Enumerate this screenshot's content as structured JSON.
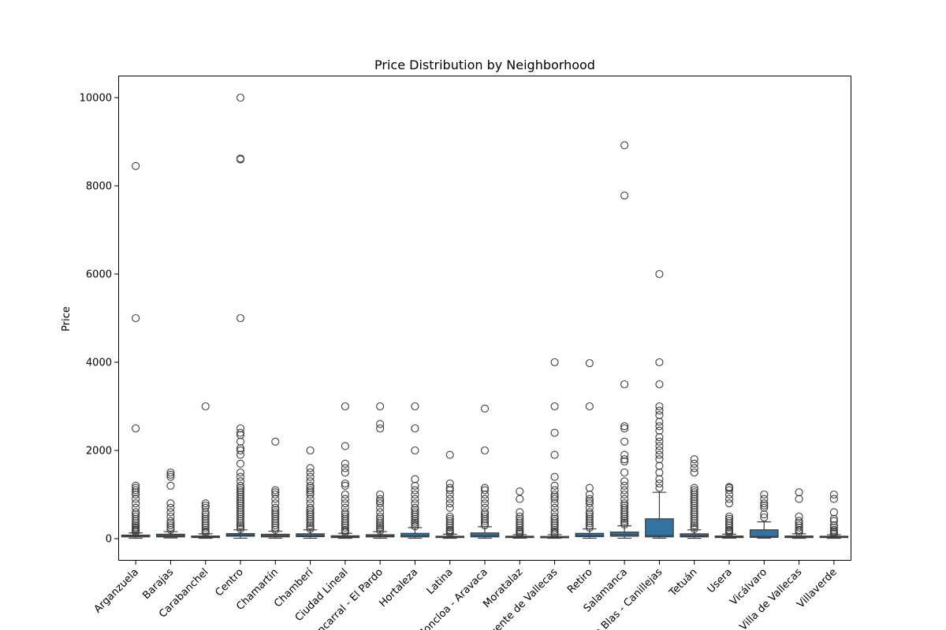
{
  "chart_data": {
    "type": "boxplot",
    "title": "Price Distribution by Neighborhood",
    "xlabel": "",
    "ylabel": "Price",
    "ylim": [
      -500,
      10500
    ],
    "yticks": [
      0,
      2000,
      4000,
      6000,
      8000,
      10000
    ],
    "grid": false,
    "box_color": "#3274a1",
    "categories": [
      "Arganzuela",
      "Barajas",
      "Carabanchel",
      "Centro",
      "Chamartín",
      "Chamberí",
      "Ciudad Lineal",
      "Fuencarral - El Pardo",
      "Hortaleza",
      "Latina",
      "Moncloa - Aravaca",
      "Moratalaz",
      "Puente de Vallecas",
      "Retiro",
      "Salamanca",
      "San Blas - Canillejas",
      "Tetuán",
      "Usera",
      "Vicálvaro",
      "Villa de Vallecas",
      "Villaverde"
    ],
    "boxes": [
      {
        "q1": 40,
        "median": 60,
        "q3": 80,
        "whisker_low": 10,
        "whisker_high": 130,
        "outliers": [
          150,
          180,
          200,
          230,
          260,
          300,
          350,
          400,
          450,
          500,
          550,
          600,
          700,
          800,
          900,
          1000,
          1050,
          1100,
          1150,
          1200,
          2500,
          5000,
          8450
        ]
      },
      {
        "q1": 40,
        "median": 65,
        "q3": 100,
        "whisker_low": 15,
        "whisker_high": 160,
        "outliers": [
          200,
          250,
          300,
          350,
          400,
          500,
          600,
          700,
          800,
          1200,
          1400,
          1450,
          1500
        ]
      },
      {
        "q1": 25,
        "median": 40,
        "q3": 60,
        "whisker_low": 8,
        "whisker_high": 110,
        "outliers": [
          130,
          160,
          200,
          250,
          300,
          350,
          400,
          450,
          500,
          550,
          600,
          700,
          750,
          800,
          3000
        ]
      },
      {
        "q1": 55,
        "median": 80,
        "q3": 115,
        "whisker_low": 10,
        "whisker_high": 200,
        "outliers": [
          220,
          260,
          300,
          350,
          400,
          450,
          500,
          550,
          600,
          650,
          700,
          750,
          800,
          850,
          900,
          950,
          1000,
          1050,
          1100,
          1150,
          1200,
          1300,
          1400,
          1500,
          1700,
          1900,
          2000,
          2050,
          2200,
          2350,
          2400,
          2500,
          5000,
          8600,
          8620,
          10000
        ]
      },
      {
        "q1": 40,
        "median": 65,
        "q3": 100,
        "whisker_low": 10,
        "whisker_high": 170,
        "outliers": [
          200,
          250,
          300,
          350,
          400,
          450,
          500,
          550,
          600,
          650,
          700,
          800,
          900,
          1000,
          1050,
          1100,
          2200
        ]
      },
      {
        "q1": 45,
        "median": 70,
        "q3": 110,
        "whisker_low": 10,
        "whisker_high": 200,
        "outliers": [
          220,
          260,
          300,
          350,
          400,
          450,
          500,
          550,
          600,
          650,
          700,
          800,
          900,
          1000,
          1050,
          1100,
          1150,
          1200,
          1300,
          1400,
          1500,
          1600,
          2000
        ]
      },
      {
        "q1": 25,
        "median": 40,
        "q3": 65,
        "whisker_low": 8,
        "whisker_high": 120,
        "outliers": [
          140,
          170,
          200,
          250,
          300,
          350,
          400,
          450,
          500,
          550,
          600,
          700,
          800,
          900,
          1000,
          1200,
          1250,
          1500,
          1600,
          1700,
          2100,
          3000
        ]
      },
      {
        "q1": 40,
        "median": 60,
        "q3": 90,
        "whisker_low": 10,
        "whisker_high": 160,
        "outliers": [
          180,
          220,
          260,
          300,
          350,
          400,
          450,
          500,
          600,
          700,
          800,
          850,
          900,
          1000,
          2500,
          2600,
          3000
        ]
      },
      {
        "q1": 40,
        "median": 70,
        "q3": 120,
        "whisker_low": 10,
        "whisker_high": 250,
        "outliers": [
          280,
          320,
          360,
          400,
          450,
          500,
          550,
          600,
          650,
          700,
          800,
          900,
          1000,
          1100,
          1200,
          1350,
          2000,
          2500,
          3000
        ]
      },
      {
        "q1": 25,
        "median": 35,
        "q3": 55,
        "whisker_low": 8,
        "whisker_high": 100,
        "outliers": [
          120,
          150,
          180,
          200,
          250,
          300,
          350,
          400,
          450,
          500,
          700,
          800,
          900,
          1000,
          1100,
          1150,
          1250,
          1900
        ]
      },
      {
        "q1": 40,
        "median": 70,
        "q3": 130,
        "whisker_low": 10,
        "whisker_high": 270,
        "outliers": [
          300,
          350,
          400,
          450,
          500,
          550,
          600,
          700,
          800,
          900,
          1000,
          1100,
          1150,
          2000,
          2950
        ]
      },
      {
        "q1": 25,
        "median": 35,
        "q3": 55,
        "whisker_low": 10,
        "whisker_high": 90,
        "outliers": [
          110,
          140,
          170,
          200,
          250,
          300,
          350,
          400,
          450,
          500,
          600,
          900,
          1070
        ]
      },
      {
        "q1": 20,
        "median": 30,
        "q3": 50,
        "whisker_low": 8,
        "whisker_high": 90,
        "outliers": [
          100,
          130,
          160,
          200,
          250,
          300,
          350,
          400,
          450,
          500,
          600,
          700,
          800,
          900,
          950,
          1000,
          1100,
          1200,
          1400,
          1900,
          2400,
          3000,
          4000
        ]
      },
      {
        "q1": 45,
        "median": 75,
        "q3": 120,
        "whisker_low": 10,
        "whisker_high": 220,
        "outliers": [
          250,
          300,
          350,
          400,
          450,
          500,
          550,
          600,
          700,
          800,
          850,
          900,
          1000,
          1150,
          3000,
          3980
        ]
      },
      {
        "q1": 55,
        "median": 90,
        "q3": 150,
        "whisker_low": 10,
        "whisker_high": 290,
        "outliers": [
          320,
          360,
          400,
          450,
          500,
          550,
          600,
          650,
          700,
          750,
          800,
          900,
          1000,
          1100,
          1200,
          1300,
          1500,
          1750,
          1800,
          1900,
          2200,
          2500,
          2550,
          3500,
          7780,
          8920
        ]
      },
      {
        "q1": 40,
        "median": 70,
        "q3": 450,
        "whisker_low": 10,
        "whisker_high": 1050,
        "outliers": [
          1150,
          1250,
          1350,
          1500,
          1650,
          1800,
          1900,
          2000,
          2100,
          2200,
          2300,
          2450,
          2550,
          2650,
          2800,
          2900,
          3000,
          3500,
          4000,
          6000
        ]
      },
      {
        "q1": 40,
        "median": 65,
        "q3": 110,
        "whisker_low": 8,
        "whisker_high": 200,
        "outliers": [
          220,
          260,
          300,
          350,
          400,
          450,
          500,
          550,
          600,
          650,
          700,
          750,
          800,
          850,
          900,
          950,
          1000,
          1050,
          1100,
          1150,
          1500,
          1600,
          1700,
          1800
        ]
      },
      {
        "q1": 25,
        "median": 40,
        "q3": 60,
        "whisker_low": 10,
        "whisker_high": 100,
        "outliers": [
          120,
          150,
          180,
          200,
          250,
          300,
          350,
          400,
          450,
          500,
          800,
          900,
          1000,
          1100,
          1150,
          1170
        ]
      },
      {
        "q1": 30,
        "median": 50,
        "q3": 200,
        "whisker_low": 10,
        "whisker_high": 380,
        "outliers": [
          480,
          550,
          700,
          750,
          800,
          900,
          1000
        ]
      },
      {
        "q1": 25,
        "median": 35,
        "q3": 60,
        "whisker_low": 8,
        "whisker_high": 110,
        "outliers": [
          140,
          180,
          200,
          250,
          300,
          350,
          400,
          500,
          900,
          1050
        ]
      },
      {
        "q1": 25,
        "median": 35,
        "q3": 55,
        "whisker_low": 8,
        "whisker_high": 90,
        "outliers": [
          110,
          140,
          170,
          200,
          250,
          300,
          400,
          450,
          600,
          900,
          1000
        ]
      }
    ]
  }
}
